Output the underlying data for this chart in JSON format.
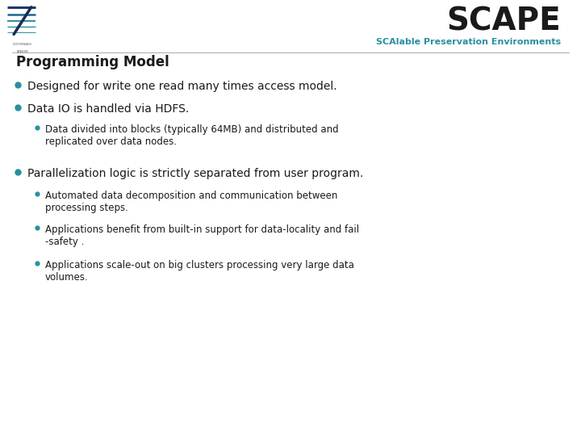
{
  "title_main": "SCAPE",
  "title_sub": "SCAlable Preservation Environments",
  "section_title": "Programming Model",
  "background_color": "#ffffff",
  "title_color": "#1a1a1a",
  "subtitle_color": "#2a8fa0",
  "section_title_color": "#1a1a1a",
  "bullet_color": "#2a8fa0",
  "text_color": "#1a1a1a",
  "bullet1_text": "Designed for write one read many times access model.",
  "bullet2_text": "Data IO is handled via HDFS.",
  "bullet2_sub1": "Data divided into blocks (typically 64MB) and distributed and\nreplicated over data nodes.",
  "bullet3_text": "Parallelization logic is strictly separated from user program.",
  "bullet3_sub1": "Automated data decomposition and communication between\nprocessing steps.",
  "bullet3_sub2": "Applications benefit from built-in support for data-locality and fail\n-safety .",
  "bullet3_sub3": "Applications scale-out on big clusters processing very large data\nvolumes."
}
